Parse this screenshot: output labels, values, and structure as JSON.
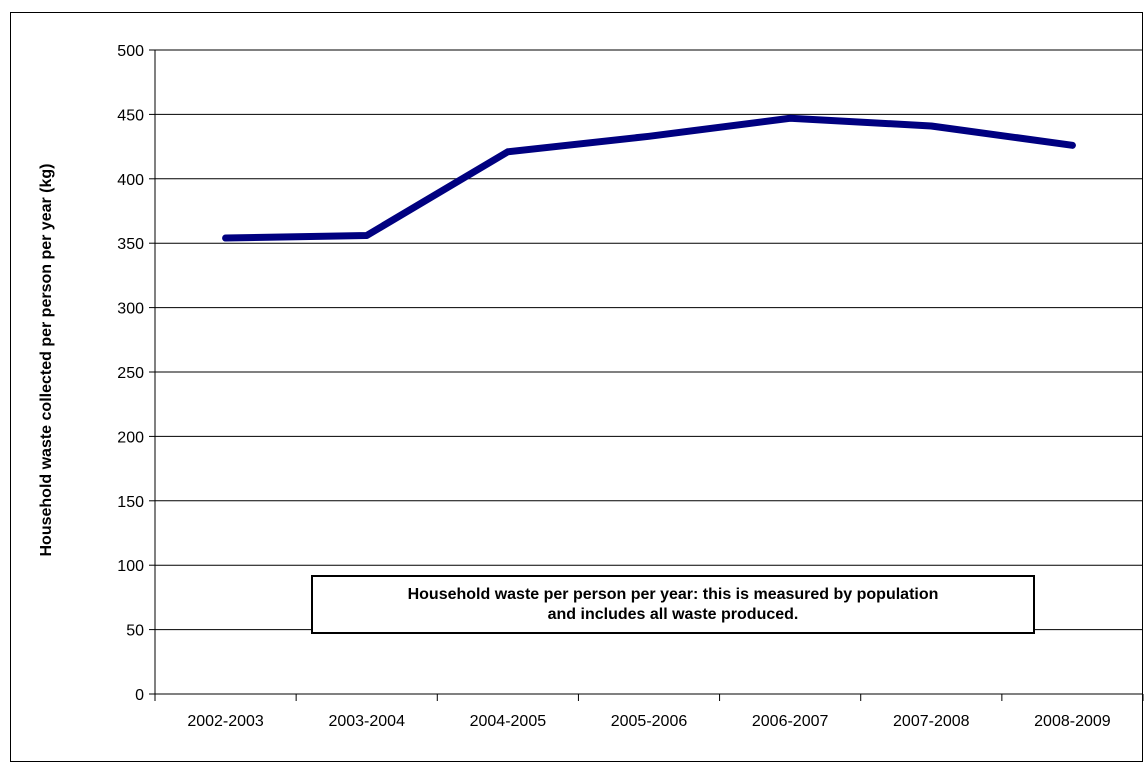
{
  "chart_data": {
    "type": "line",
    "categories": [
      "2002-2003",
      "2003-2004",
      "2004-2005",
      "2005-2006",
      "2006-2007",
      "2007-2008",
      "2008-2009"
    ],
    "series": [
      {
        "values": [
          354,
          356,
          421,
          433,
          447,
          441,
          426
        ],
        "color": "#000080"
      }
    ],
    "title": "",
    "xlabel": "",
    "ylabel": "Household waste collected per person per year (kg)",
    "ylim": [
      0,
      500
    ],
    "yticks": [
      0,
      50,
      100,
      150,
      200,
      250,
      300,
      350,
      400,
      450,
      500
    ],
    "grid": true,
    "annotation": {
      "line1": "Household waste per person per year: this is measured by population",
      "line2": "and includes all waste produced."
    }
  }
}
